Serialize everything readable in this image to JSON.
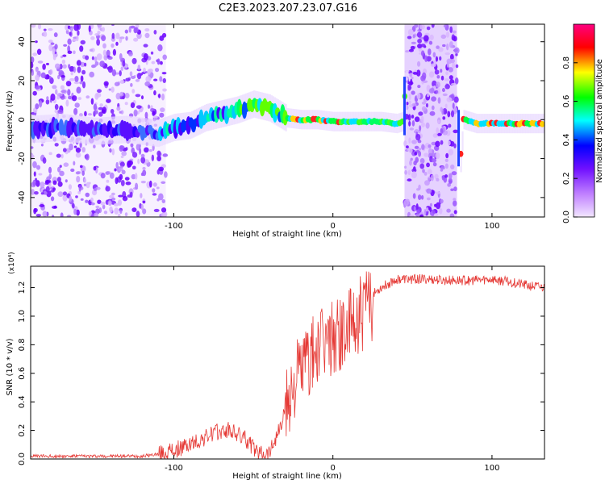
{
  "title": "C2E3.2023.207.23.07.G16",
  "chart_data": [
    {
      "type": "heatmap",
      "xlabel": "Height of straight line (km)",
      "ylabel": "Frequency (Hz)",
      "xlim": [
        -190,
        133
      ],
      "ylim": [
        -50,
        49
      ],
      "x_ticks": [
        -100,
        0,
        100
      ],
      "y_ticks": [
        -40,
        -20,
        0,
        20,
        40
      ],
      "colorbar": {
        "label": "Normalized spectral amplitude",
        "range": [
          0,
          1
        ],
        "ticks": [
          "0.0",
          "0.2",
          "0.4",
          "0.6",
          "0.8"
        ],
        "colors": [
          "#f2e6ff",
          "#c080ff",
          "#7010ff",
          "#0000ff",
          "#00ffff",
          "#00ff00",
          "#ffff00",
          "#ff0000",
          "#ff0080"
        ]
      },
      "ridge": {
        "x": [
          -190,
          -170,
          -150,
          -130,
          -110,
          -100,
          -90,
          -80,
          -70,
          -60,
          -50,
          -40,
          -30,
          -20,
          -10,
          0,
          10,
          20,
          30,
          40,
          44,
          46,
          80,
          82,
          90,
          110,
          133
        ],
        "y": [
          -5,
          -4,
          -6,
          -5,
          -7,
          -4,
          -3,
          1,
          3,
          5,
          8,
          6,
          1,
          0,
          0,
          -1,
          -1,
          -1,
          -1,
          -2,
          -1,
          20,
          -22,
          0,
          -2,
          -2,
          -2
        ]
      },
      "noise_regions": [
        [
          -190,
          -105
        ],
        [
          45,
          78
        ]
      ]
    },
    {
      "type": "line",
      "xlabel": "Height of straight line (km)",
      "ylabel": "SNR (10 * v/v)",
      "y_multiplier": "(x10⁴)",
      "xlim": [
        -190,
        133
      ],
      "ylim": [
        0,
        1.35
      ],
      "x_ticks": [
        -100,
        0,
        100
      ],
      "y_ticks": [
        "0.0",
        "0.2",
        "0.4",
        "0.6",
        "0.8",
        "1.0",
        "1.2"
      ],
      "color": "#e53935",
      "envelope": {
        "x": [
          -190,
          -120,
          -105,
          -95,
          -85,
          -75,
          -65,
          -55,
          -48,
          -40,
          -32,
          -28,
          -20,
          -10,
          0,
          10,
          20,
          30,
          40,
          50,
          60,
          70,
          80,
          90,
          100,
          110,
          120,
          133
        ],
        "y": [
          0.02,
          0.02,
          0.04,
          0.08,
          0.12,
          0.18,
          0.2,
          0.14,
          0.05,
          0.05,
          0.25,
          0.5,
          0.68,
          0.8,
          0.9,
          0.95,
          1.1,
          1.2,
          1.26,
          1.26,
          1.26,
          1.25,
          1.25,
          1.25,
          1.26,
          1.24,
          1.22,
          1.2
        ]
      }
    }
  ]
}
